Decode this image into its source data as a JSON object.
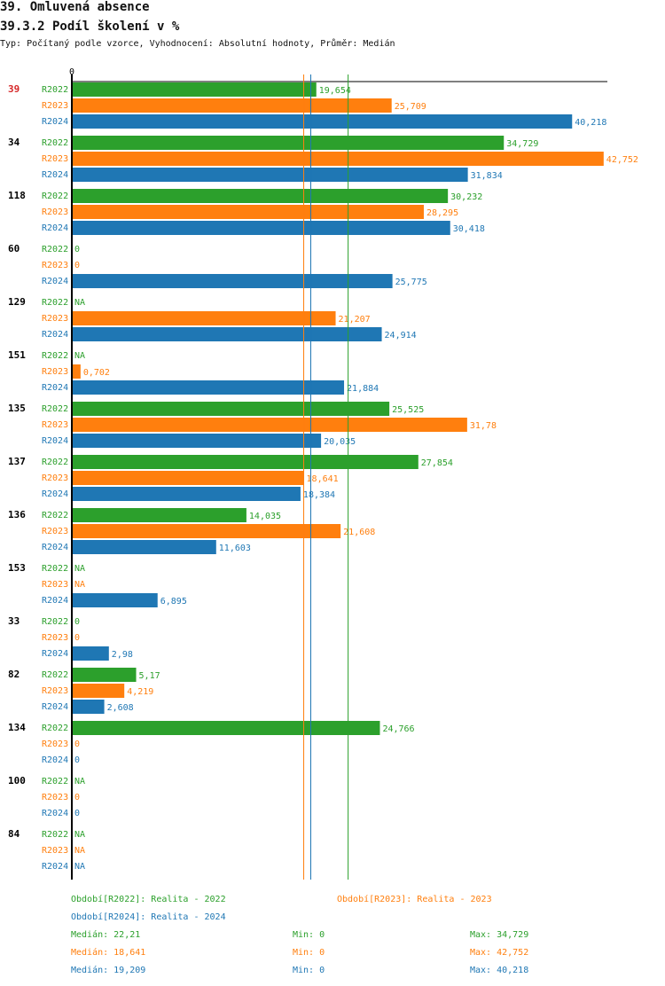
{
  "header": {
    "title": "39. Omluvená absence",
    "subtitle": "39.3.2 Podíl školení v %",
    "description": "Typ: Počítaný podle vzorce, Vyhodnocení: Absolutní hodnoty, Průměr: Medián"
  },
  "colors": {
    "R2022": "#2ca02c",
    "R2023": "#ff7f0e",
    "R2024": "#1f77b4",
    "highlight_group": "#d62728",
    "axis": "#000000"
  },
  "chart_data": {
    "type": "bar",
    "orientation": "horizontal",
    "title": "39.3.2 Podíl školení v %",
    "xlabel": "",
    "ylabel": "",
    "axis_zero_label": "0",
    "xlim": [
      0,
      43
    ],
    "grid": false,
    "highlighted_group": "39",
    "series_names": [
      "R2022",
      "R2023",
      "R2024"
    ],
    "groups": [
      {
        "id": "39",
        "values": {
          "R2022": 19.654,
          "R2023": 25.709,
          "R2024": 40.218
        },
        "labels": {
          "R2022": "19,654",
          "R2023": "25,709",
          "R2024": "40,218"
        }
      },
      {
        "id": "34",
        "values": {
          "R2022": 34.729,
          "R2023": 42.752,
          "R2024": 31.834
        },
        "labels": {
          "R2022": "34,729",
          "R2023": "42,752",
          "R2024": "31,834"
        }
      },
      {
        "id": "118",
        "values": {
          "R2022": 30.232,
          "R2023": 28.295,
          "R2024": 30.418
        },
        "labels": {
          "R2022": "30,232",
          "R2023": "28,295",
          "R2024": "30,418"
        }
      },
      {
        "id": "60",
        "values": {
          "R2022": 0,
          "R2023": 0,
          "R2024": 25.775
        },
        "labels": {
          "R2022": "0",
          "R2023": "0",
          "R2024": "25,775"
        }
      },
      {
        "id": "129",
        "values": {
          "R2022": null,
          "R2023": 21.207,
          "R2024": 24.914
        },
        "labels": {
          "R2022": "NA",
          "R2023": "21,207",
          "R2024": "24,914"
        }
      },
      {
        "id": "151",
        "values": {
          "R2022": null,
          "R2023": 0.702,
          "R2024": 21.884
        },
        "labels": {
          "R2022": "NA",
          "R2023": "0,702",
          "R2024": "21,884"
        }
      },
      {
        "id": "135",
        "values": {
          "R2022": 25.525,
          "R2023": 31.78,
          "R2024": 20.035
        },
        "labels": {
          "R2022": "25,525",
          "R2023": "31,78",
          "R2024": "20,035"
        }
      },
      {
        "id": "137",
        "values": {
          "R2022": 27.854,
          "R2023": 18.641,
          "R2024": 18.384
        },
        "labels": {
          "R2022": "27,854",
          "R2023": "18,641",
          "R2024": "18,384"
        }
      },
      {
        "id": "136",
        "values": {
          "R2022": 14.035,
          "R2023": 21.608,
          "R2024": 11.603
        },
        "labels": {
          "R2022": "14,035",
          "R2023": "21,608",
          "R2024": "11,603"
        }
      },
      {
        "id": "153",
        "values": {
          "R2022": null,
          "R2023": null,
          "R2024": 6.895
        },
        "labels": {
          "R2022": "NA",
          "R2023": "NA",
          "R2024": "6,895"
        }
      },
      {
        "id": "33",
        "values": {
          "R2022": 0,
          "R2023": 0,
          "R2024": 2.98
        },
        "labels": {
          "R2022": "0",
          "R2023": "0",
          "R2024": "2,98"
        }
      },
      {
        "id": "82",
        "values": {
          "R2022": 5.17,
          "R2023": 4.219,
          "R2024": 2.608
        },
        "labels": {
          "R2022": "5,17",
          "R2023": "4,219",
          "R2024": "2,608"
        }
      },
      {
        "id": "134",
        "values": {
          "R2022": 24.766,
          "R2023": 0,
          "R2024": 0
        },
        "labels": {
          "R2022": "24,766",
          "R2023": "0",
          "R2024": "0"
        }
      },
      {
        "id": "100",
        "values": {
          "R2022": null,
          "R2023": 0,
          "R2024": 0
        },
        "labels": {
          "R2022": "NA",
          "R2023": "0",
          "R2024": "0"
        }
      },
      {
        "id": "84",
        "values": {
          "R2022": null,
          "R2023": null,
          "R2024": null
        },
        "labels": {
          "R2022": "NA",
          "R2023": "NA",
          "R2024": "NA"
        }
      }
    ],
    "median_lines": {
      "R2022": 22.21,
      "R2023": 18.641,
      "R2024": 19.209
    }
  },
  "legend": {
    "R2022": "Období[R2022]: Realita - 2022",
    "R2023": "Období[R2023]: Realita - 2023",
    "R2024": "Období[R2024]: Realita - 2024"
  },
  "stats": [
    {
      "series": "R2022",
      "median": "Medián: 22,21",
      "min": "Min: 0",
      "max": "Max: 34,729"
    },
    {
      "series": "R2023",
      "median": "Medián: 18,641",
      "min": "Min: 0",
      "max": "Max: 42,752"
    },
    {
      "series": "R2024",
      "median": "Medián: 19,209",
      "min": "Min: 0",
      "max": "Max: 40,218"
    }
  ]
}
